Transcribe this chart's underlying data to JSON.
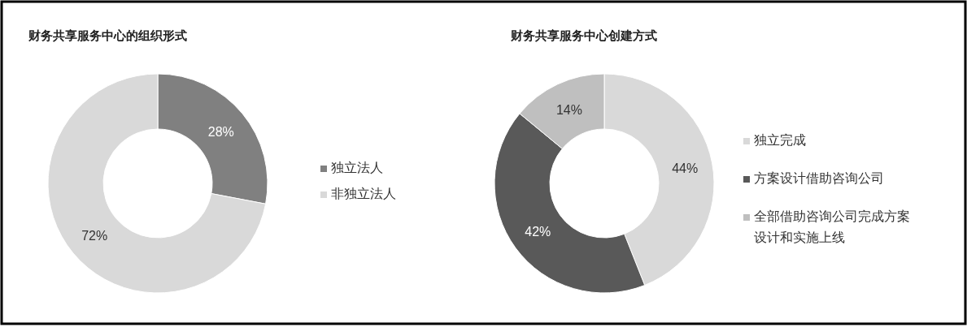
{
  "chart_data": [
    {
      "type": "donut",
      "title": "财务共享服务中心的组织形式",
      "categories": [
        "独立法人",
        "非独立法人"
      ],
      "values": [
        28,
        72
      ],
      "colors": [
        "#808080",
        "#d9d9d9"
      ],
      "value_labels": [
        "28%",
        "72%"
      ],
      "legend": "right"
    },
    {
      "type": "donut",
      "title": "财务共享服务中心创建方式",
      "categories": [
        "独立完成",
        "方案设计借助咨询公司",
        "全部借助咨询公司完成方案设计和实施上线"
      ],
      "values": [
        44,
        42,
        14
      ],
      "colors": [
        "#d9d9d9",
        "#595959",
        "#bfbfbf"
      ],
      "value_labels": [
        "44%",
        "42%",
        "14%"
      ],
      "legend": "right"
    }
  ]
}
